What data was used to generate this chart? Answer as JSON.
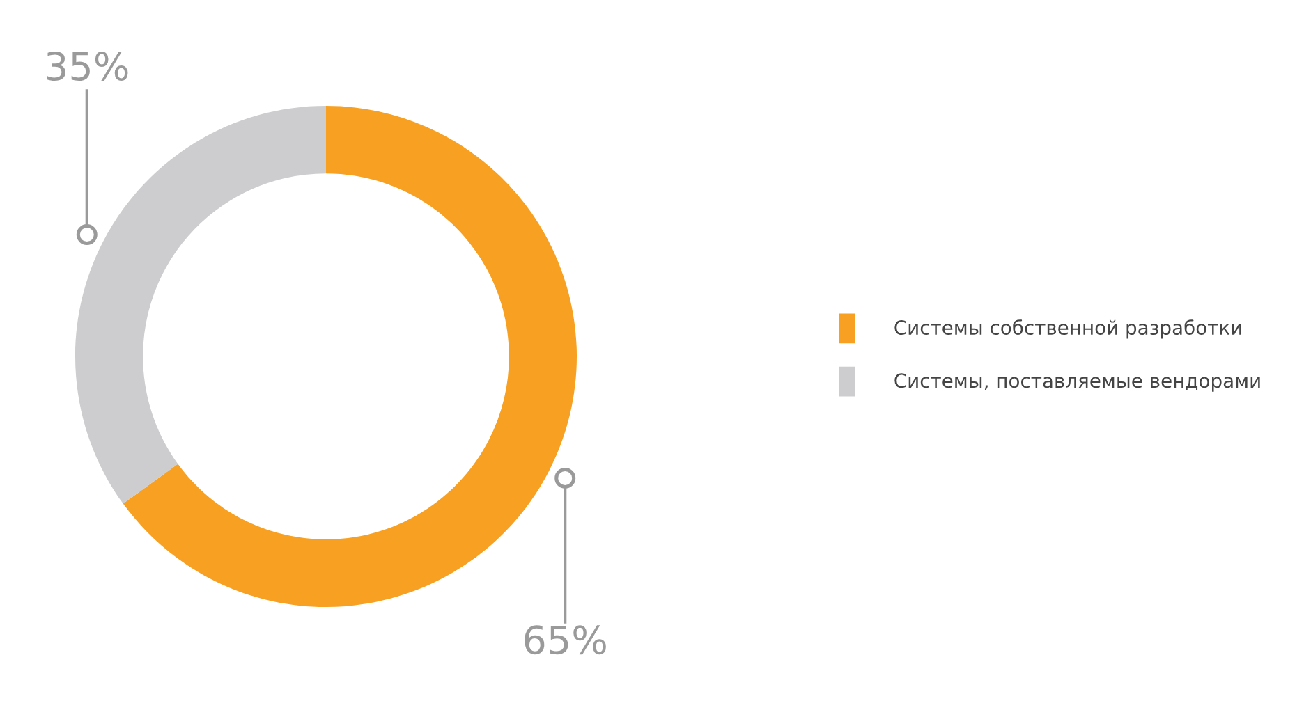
{
  "chart_data": {
    "type": "donut",
    "categories": [
      "Системы собственной разработки",
      "Системы, поставляемые вендорами"
    ],
    "values": [
      65,
      35
    ],
    "colors": [
      "#f7a021",
      "#cdcccf"
    ],
    "value_labels": [
      "65%",
      "35%"
    ],
    "legend": "right"
  }
}
